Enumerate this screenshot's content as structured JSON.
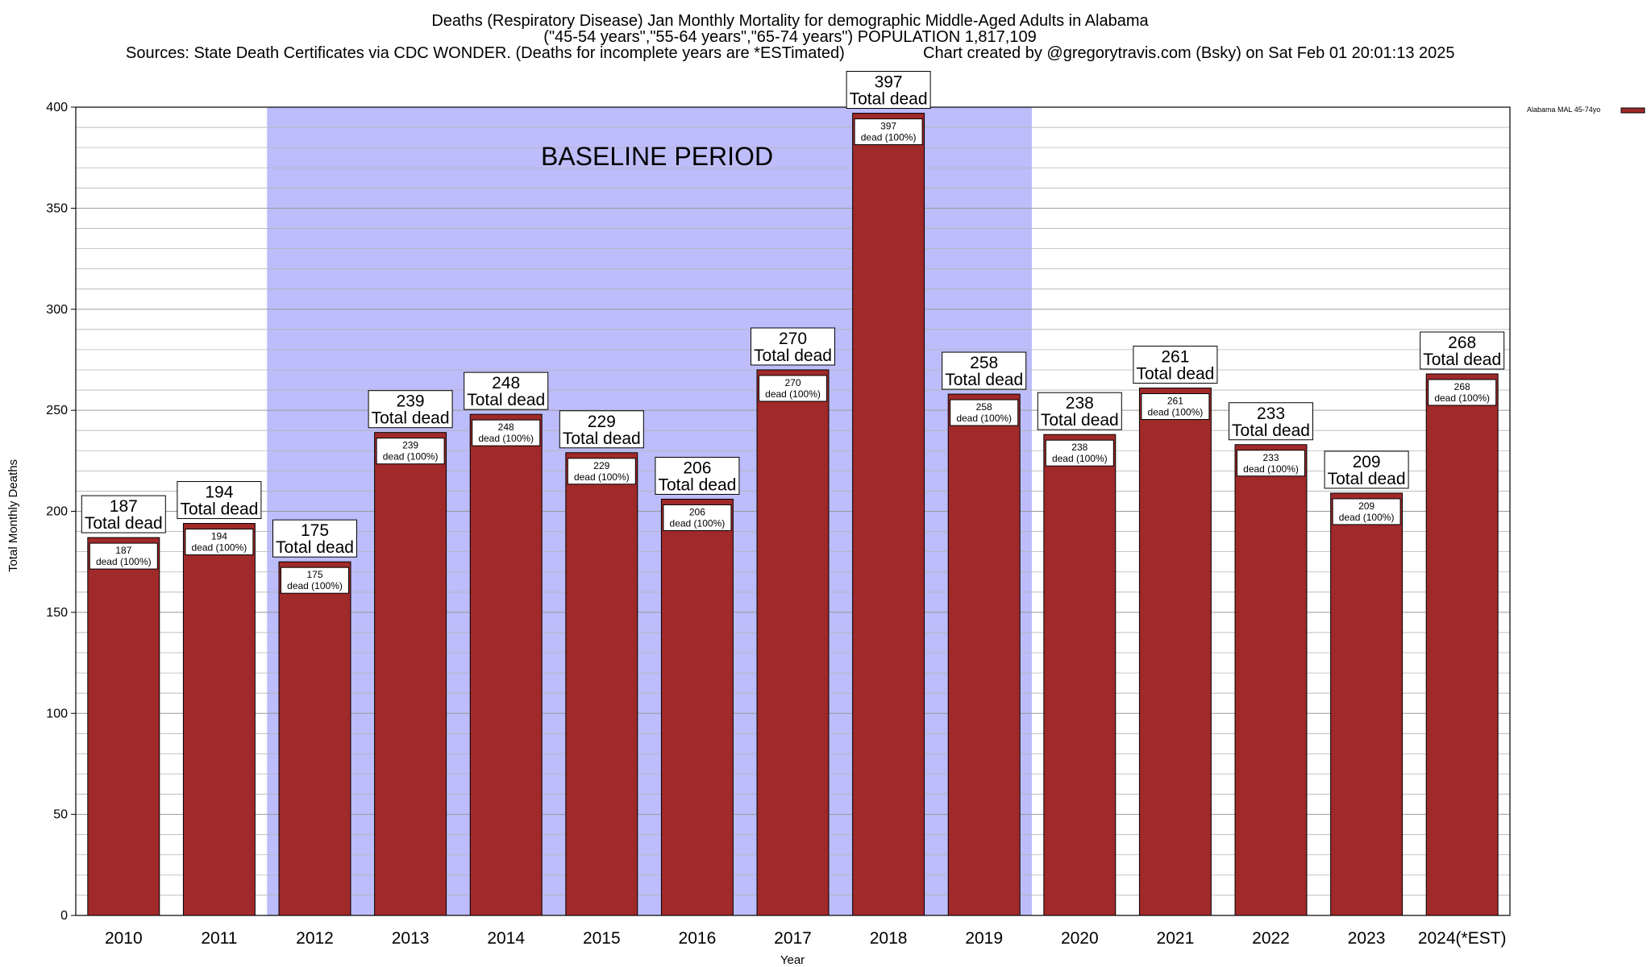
{
  "title": {
    "line1": "Deaths (Respiratory Disease) Jan Monthly Mortality for demographic Middle-Aged Adults in Alabama",
    "line2": "(\"45-54 years\",\"55-64 years\",\"65-74 years\") POPULATION 1,817,109",
    "line3_left": "Sources: State Death Certificates via CDC WONDER. (Deaths for incomplete years are *ESTimated)",
    "line3_right": "Chart created by @gregorytravis.com (Bsky) on Sat Feb 01 20:01:13 2025"
  },
  "baseline_label": "BASELINE PERIOD",
  "legend": {
    "label": "Alabama MAL 45-74yo",
    "color": "#a0292a"
  },
  "colors": {
    "bar": "#a0292a",
    "baseline_band": "#bdbdfb",
    "grid": "#b4b4b4"
  },
  "bar_labels": {
    "total_word": "Total dead",
    "inner_word": "dead (100%)"
  },
  "chart_data": {
    "type": "bar",
    "xlabel": "Year",
    "ylabel": "Total Monthly Deaths",
    "ylim": [
      0,
      400
    ],
    "yticks": [
      0,
      50,
      100,
      150,
      200,
      250,
      300,
      350,
      400
    ],
    "grid": true,
    "legend_position": "top-right",
    "categories": [
      "2010",
      "2011",
      "2012",
      "2013",
      "2014",
      "2015",
      "2016",
      "2017",
      "2018",
      "2019",
      "2020",
      "2021",
      "2022",
      "2023",
      "2024(*EST)"
    ],
    "series": [
      {
        "name": "Alabama MAL 45-74yo",
        "values": [
          187,
          194,
          175,
          239,
          248,
          229,
          206,
          270,
          397,
          258,
          238,
          261,
          233,
          209,
          268
        ]
      }
    ],
    "baseline_period": [
      "2012",
      "2019"
    ]
  }
}
